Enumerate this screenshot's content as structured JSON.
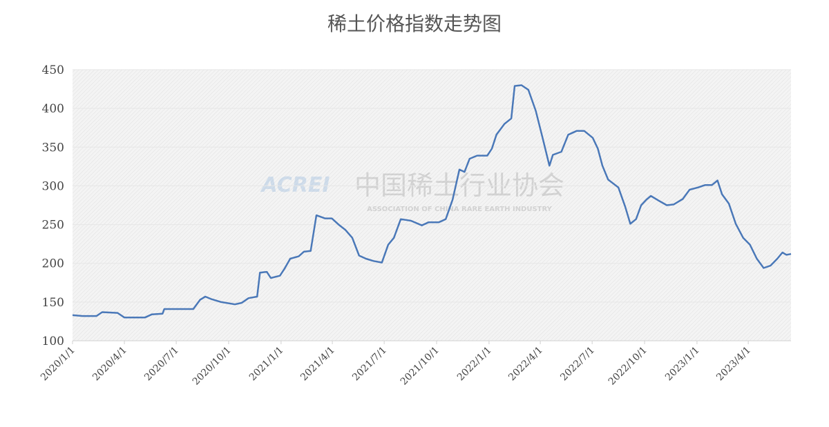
{
  "chart_data": {
    "type": "line",
    "title": "稀土价格指数走势图",
    "watermark": {
      "logo": "ACREI",
      "name_cn": "中国稀土行业协会",
      "name_en": "ASSOCIATION OF CHINA RARE EARTH INDUSTRY"
    },
    "xlim": [
      "2020-01-01",
      "2023-06-15"
    ],
    "xticks": [
      {
        "value": "2020-01-01",
        "label": "2020/1/1"
      },
      {
        "value": "2020-04-01",
        "label": "2020/4/1"
      },
      {
        "value": "2020-07-01",
        "label": "2020/7/1"
      },
      {
        "value": "2020-10-01",
        "label": "2020/10/1"
      },
      {
        "value": "2021-01-01",
        "label": "2021/1/1"
      },
      {
        "value": "2021-04-01",
        "label": "2021/4/1"
      },
      {
        "value": "2021-07-01",
        "label": "2021/7/1"
      },
      {
        "value": "2021-10-01",
        "label": "2021/10/1"
      },
      {
        "value": "2022-01-01",
        "label": "2022/1/1"
      },
      {
        "value": "2022-04-01",
        "label": "2022/4/1"
      },
      {
        "value": "2022-07-01",
        "label": "2022/7/1"
      },
      {
        "value": "2022-10-01",
        "label": "2022/10/1"
      },
      {
        "value": "2023-01-01",
        "label": "2023/1/1"
      },
      {
        "value": "2023-04-01",
        "label": "2023/4/1"
      }
    ],
    "ylim": [
      100,
      450
    ],
    "yticks": [
      100,
      150,
      200,
      250,
      300,
      350,
      400,
      450
    ],
    "grid": true,
    "x": [
      "2020-01-01",
      "2020-01-19",
      "2020-02-12",
      "2020-02-22",
      "2020-03-20",
      "2020-04-01",
      "2020-05-07",
      "2020-05-19",
      "2020-06-07",
      "2020-06-10",
      "2020-07-01",
      "2020-07-31",
      "2020-08-12",
      "2020-08-21",
      "2020-08-31",
      "2020-09-18",
      "2020-10-12",
      "2020-10-24",
      "2020-11-05",
      "2020-11-20",
      "2020-11-25",
      "2020-12-07",
      "2020-12-14",
      "2020-12-30",
      "2021-01-07",
      "2021-01-17",
      "2021-02-01",
      "2021-02-10",
      "2021-02-22",
      "2021-03-04",
      "2021-03-19",
      "2021-03-31",
      "2021-04-12",
      "2021-04-24",
      "2021-05-06",
      "2021-05-18",
      "2021-05-30",
      "2021-06-12",
      "2021-06-27",
      "2021-07-08",
      "2021-07-18",
      "2021-07-30",
      "2021-08-17",
      "2021-09-05",
      "2021-09-17",
      "2021-10-05",
      "2021-10-17",
      "2021-10-29",
      "2021-11-10",
      "2021-11-19",
      "2021-11-28",
      "2021-12-11",
      "2021-12-29",
      "2022-01-06",
      "2022-01-14",
      "2022-01-28",
      "2022-02-09",
      "2022-02-15",
      "2022-02-27",
      "2022-03-11",
      "2022-03-24",
      "2022-04-05",
      "2022-04-17",
      "2022-04-23",
      "2022-05-08",
      "2022-05-20",
      "2022-06-04",
      "2022-06-17",
      "2022-07-02",
      "2022-07-11",
      "2022-07-19",
      "2022-07-29",
      "2022-08-16",
      "2022-08-28",
      "2022-09-06",
      "2022-09-16",
      "2022-09-25",
      "2022-10-04",
      "2022-10-12",
      "2022-10-28",
      "2022-11-09",
      "2022-11-21",
      "2022-12-07",
      "2022-12-19",
      "2023-01-03",
      "2023-01-15",
      "2023-01-27",
      "2023-02-06",
      "2023-02-14",
      "2023-02-26",
      "2023-03-10",
      "2023-03-23",
      "2023-04-04",
      "2023-04-16",
      "2023-04-28",
      "2023-05-10",
      "2023-05-22",
      "2023-05-31",
      "2023-06-07",
      "2023-06-15"
    ],
    "series": [
      {
        "name": "稀土价格指数",
        "color": "#4a78b8",
        "values": [
          133,
          132,
          132,
          137,
          136,
          130,
          130,
          134,
          135,
          141,
          141,
          141,
          153,
          157,
          154,
          150,
          147,
          149,
          155,
          157,
          188,
          189,
          181,
          184,
          193,
          206,
          209,
          215,
          216,
          262,
          258,
          258,
          250,
          243,
          233,
          210,
          206,
          203,
          201,
          224,
          233,
          257,
          255,
          249,
          253,
          253,
          257,
          282,
          321,
          318,
          335,
          339,
          339,
          348,
          366,
          380,
          387,
          429,
          430,
          424,
          397,
          362,
          326,
          340,
          344,
          366,
          371,
          371,
          362,
          348,
          326,
          308,
          298,
          273,
          251,
          257,
          275,
          282,
          287,
          280,
          275,
          276,
          283,
          295,
          298,
          301,
          301,
          307,
          289,
          277,
          251,
          233,
          224,
          206,
          194,
          197,
          206,
          214,
          211,
          212
        ]
      }
    ]
  }
}
